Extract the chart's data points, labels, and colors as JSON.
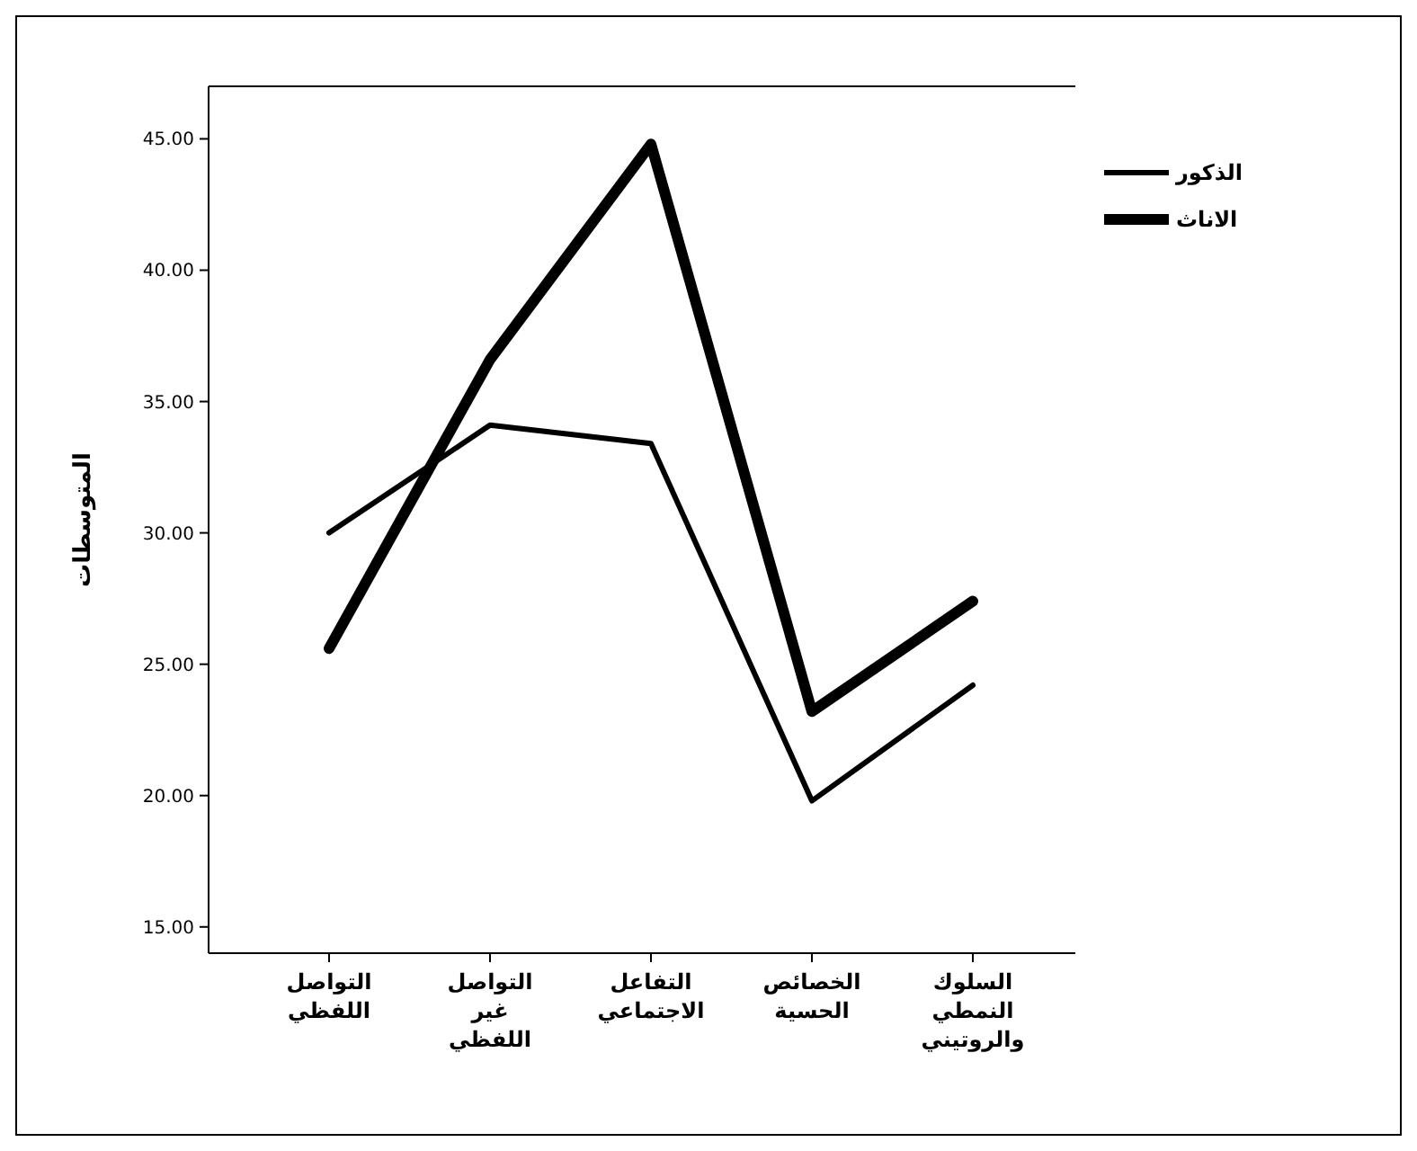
{
  "chart_data": {
    "type": "line",
    "ylabel": "المتوسطات",
    "categories": [
      "التواصل اللفظي",
      "التواصل غير اللفظي",
      "التفاعل الاجتماعي",
      "الخصائص الحسية",
      "السلوك النمطي والروتيني"
    ],
    "series": [
      {
        "name": "الذكور",
        "color": "#000000",
        "values": [
          30.0,
          34.1,
          33.4,
          19.8,
          24.2
        ]
      },
      {
        "name": "الاناث",
        "color": "#000000",
        "values": [
          25.6,
          36.6,
          44.8,
          23.2,
          27.4
        ]
      }
    ],
    "ylim": [
      14,
      47
    ],
    "yticks": [
      {
        "value": 15,
        "label": "15.00"
      },
      {
        "value": 20,
        "label": "20.00"
      },
      {
        "value": 25,
        "label": "25.00"
      },
      {
        "value": 30,
        "label": "30.00"
      },
      {
        "value": 35,
        "label": "35.00"
      },
      {
        "value": 40,
        "label": "40.00"
      },
      {
        "value": 45,
        "label": "45.00"
      }
    ],
    "grid": false,
    "legend": "top right",
    "marker": "none",
    "line_style": "solid"
  }
}
